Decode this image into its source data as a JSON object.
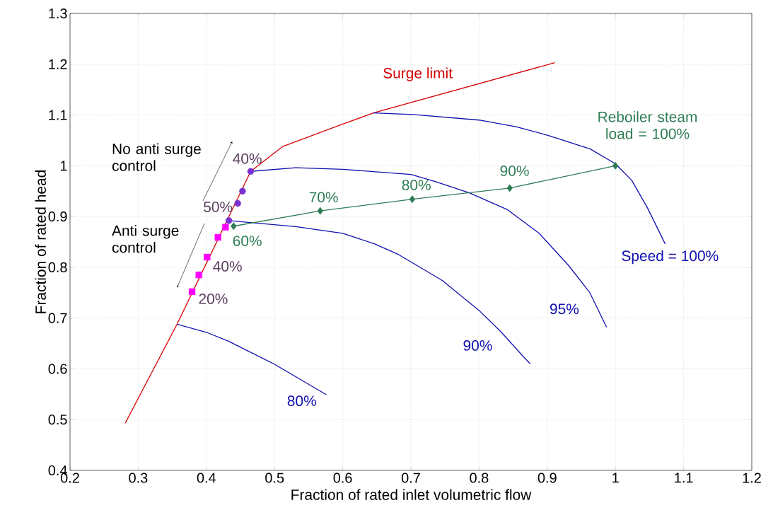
{
  "chart_data": {
    "type": "line",
    "xlabel": "Fraction of rated inlet volumetric flow",
    "ylabel": "Fraction of rated head",
    "xlim": [
      0.2,
      1.2
    ],
    "ylim": [
      0.4,
      1.3
    ],
    "xticks": [
      0.2,
      0.3,
      0.4,
      0.5,
      0.6,
      0.7,
      0.8,
      0.9,
      1,
      1.1,
      1.2
    ],
    "yticks": [
      0.4,
      0.5,
      0.6,
      0.7,
      0.8,
      0.9,
      1,
      1.1,
      1.2,
      1.3
    ],
    "grid": true,
    "series": [
      {
        "name": "Surge limit",
        "color": "#d40000",
        "x": [
          0.281,
          0.357,
          0.465,
          0.512,
          0.598,
          0.645,
          0.911
        ],
        "values": [
          0.493,
          0.688,
          0.989,
          1.038,
          1.081,
          1.104,
          1.203
        ]
      },
      {
        "name": "80%",
        "color": "#1010b0",
        "x": [
          0.357,
          0.402,
          0.433,
          0.5,
          0.576
        ],
        "values": [
          0.688,
          0.671,
          0.654,
          0.609,
          0.549
        ]
      },
      {
        "name": "90%",
        "color": "#1010b0",
        "x": [
          0.433,
          0.531,
          0.6,
          0.647,
          0.682,
          0.746,
          0.8,
          0.832,
          0.865,
          0.875
        ],
        "values": [
          0.892,
          0.88,
          0.867,
          0.846,
          0.825,
          0.774,
          0.715,
          0.673,
          0.624,
          0.61
        ]
      },
      {
        "name": "95%",
        "color": "#1010b0",
        "x": [
          0.465,
          0.531,
          0.6,
          0.7,
          0.738,
          0.785,
          0.841,
          0.888,
          0.931,
          0.962,
          0.987
        ],
        "values": [
          0.989,
          0.996,
          0.993,
          0.983,
          0.968,
          0.947,
          0.914,
          0.867,
          0.804,
          0.751,
          0.682
        ]
      },
      {
        "name": "Speed = 100%",
        "color": "#1010b0",
        "x": [
          0.645,
          0.703,
          0.8,
          0.854,
          0.901,
          0.963,
          1.0,
          1.024,
          1.047,
          1.073
        ],
        "values": [
          1.104,
          1.101,
          1.09,
          1.077,
          1.06,
          1.033,
          1.004,
          0.971,
          0.917,
          0.846
        ]
      },
      {
        "color": "#2e7d55",
        "marker": "diamond",
        "x": [
          0.44,
          0.567,
          0.702,
          0.845,
          1.0
        ],
        "values": [
          0.881,
          0.911,
          0.934,
          0.956,
          1.0
        ]
      },
      {
        "type": "scatter",
        "color": "#7a2fd0",
        "marker": "circle",
        "x": [
          0.465,
          0.453,
          0.446,
          0.433
        ],
        "values": [
          0.989,
          0.95,
          0.926,
          0.892
        ]
      },
      {
        "type": "scatter",
        "color": "#ff00ff",
        "marker": "square",
        "x": [
          0.428,
          0.417,
          0.401,
          0.389,
          0.379
        ],
        "values": [
          0.879,
          0.859,
          0.82,
          0.785,
          0.752
        ]
      }
    ],
    "annotations": [
      {
        "text": "60%",
        "x": 0.44,
        "y": 0.881
      },
      {
        "text": "70%",
        "x": 0.567,
        "y": 0.911
      },
      {
        "text": "80%",
        "x": 0.702,
        "y": 0.934
      },
      {
        "text": "90%",
        "x": 0.845,
        "y": 0.956
      },
      {
        "text": "Reboiler steam load = 100%",
        "x": 1.0,
        "y": 1.0
      },
      {
        "text": "40%",
        "x": 0.465,
        "y": 0.989
      },
      {
        "text": "50%",
        "x": 0.433,
        "y": 0.892
      },
      {
        "text": "40%",
        "x": 0.401,
        "y": 0.82
      },
      {
        "text": "20%",
        "x": 0.379,
        "y": 0.752
      },
      "No anti surge control",
      "Anti surge control"
    ]
  }
}
